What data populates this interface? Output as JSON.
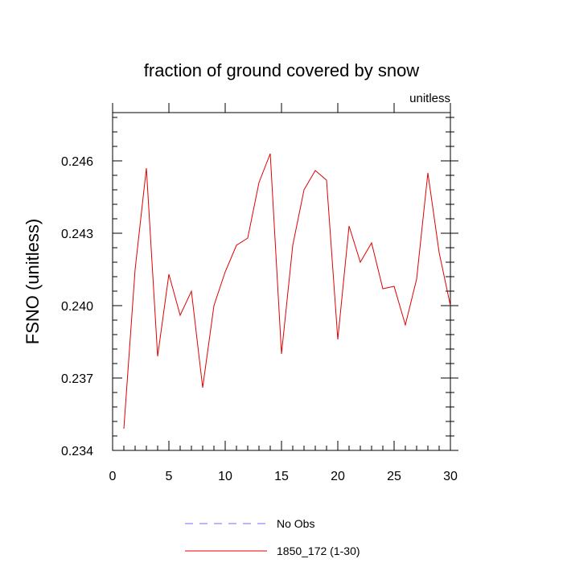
{
  "chart_data": {
    "type": "line",
    "title": "fraction of ground covered by snow",
    "units_label": "unitless",
    "ylabel": "FSNO  (unitless)",
    "xlabel": "",
    "xlim": [
      0,
      30
    ],
    "ylim": [
      0.234,
      0.248
    ],
    "x_ticks": [
      0,
      5,
      10,
      15,
      20,
      25,
      30
    ],
    "y_ticks": [
      0.234,
      0.237,
      0.24,
      0.243,
      0.246
    ],
    "y_tick_labels": [
      "0.234",
      "0.237",
      "0.240",
      "0.243",
      "0.246"
    ],
    "x": [
      1,
      2,
      3,
      4,
      5,
      6,
      7,
      8,
      9,
      10,
      11,
      12,
      13,
      14,
      15,
      16,
      17,
      18,
      19,
      20,
      21,
      22,
      23,
      24,
      25,
      26,
      27,
      28,
      29,
      30
    ],
    "series": [
      {
        "name": "1850_172 (1-30)",
        "color": "#e00000",
        "values": [
          0.2349,
          0.2415,
          0.2457,
          0.2379,
          0.2413,
          0.2396,
          0.2406,
          0.2366,
          0.24,
          0.2414,
          0.2425,
          0.2428,
          0.2451,
          0.2463,
          0.238,
          0.2425,
          0.2448,
          0.2456,
          0.2452,
          0.2386,
          0.2433,
          0.2418,
          0.2426,
          0.2407,
          0.2408,
          0.2392,
          0.2411,
          0.2455,
          0.2422,
          0.24
        ]
      }
    ],
    "legend": {
      "placement": "bottom",
      "entries": [
        {
          "label": "No Obs",
          "color": "#7070ff",
          "style": "dashed"
        },
        {
          "label": "1850_172 (1-30)",
          "color": "#e00000",
          "style": "solid"
        }
      ]
    }
  }
}
